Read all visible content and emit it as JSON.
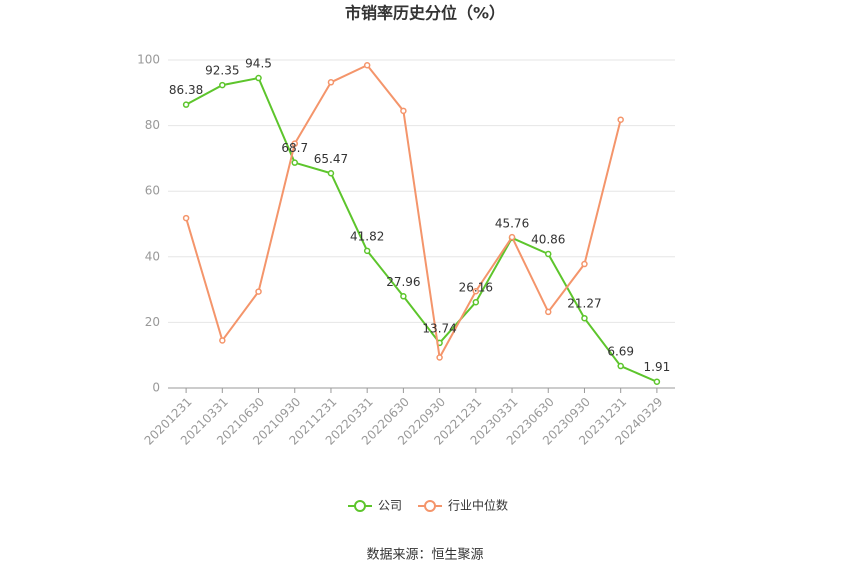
{
  "chart_data": {
    "type": "line",
    "title": "市销率历史分位（%）",
    "categories": [
      "20201231",
      "20210331",
      "20210630",
      "20210930",
      "20211231",
      "20220331",
      "20220630",
      "20220930",
      "20221231",
      "20230331",
      "20230630",
      "20230930",
      "20231231",
      "20240329"
    ],
    "series": [
      {
        "name": "公司",
        "color": "#5dc52c",
        "values": [
          86.38,
          92.35,
          94.5,
          68.7,
          65.47,
          41.82,
          27.96,
          13.74,
          26.16,
          45.76,
          40.86,
          21.27,
          6.69,
          1.91
        ],
        "show_labels": true
      },
      {
        "name": "行业中位数",
        "color": "#f4956b",
        "values": [
          51.8,
          14.5,
          29.4,
          74.5,
          93.2,
          98.4,
          84.5,
          9.3,
          29.5,
          46.0,
          23.2,
          37.8,
          81.8,
          null
        ],
        "show_labels": false
      }
    ],
    "ylim": [
      0,
      100
    ],
    "yticks": [
      0,
      20,
      40,
      60,
      80,
      100
    ],
    "grid": true,
    "legend": "bottom",
    "source": "数据来源：恒生聚源"
  }
}
